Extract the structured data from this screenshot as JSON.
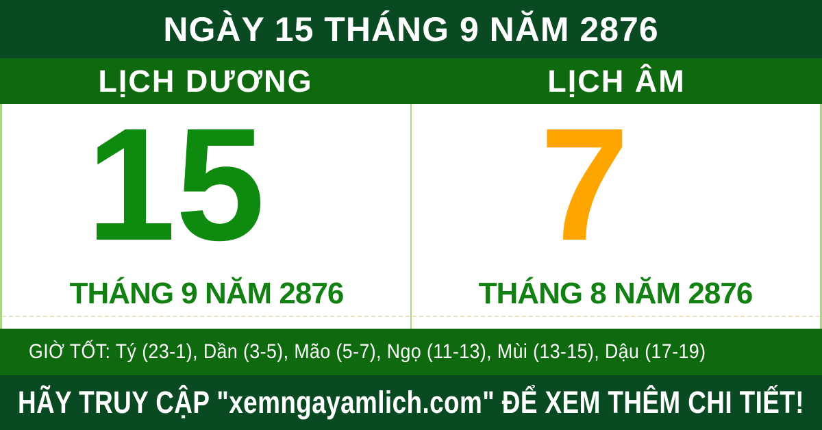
{
  "colors": {
    "dark_green": "#0a4a22",
    "band_green": "#0f6a0f",
    "solar_green": "#0e8a0e",
    "label_green": "#128012",
    "lunar_orange": "#ffa500",
    "divider_green": "#abd685",
    "white": "#ffffff"
  },
  "header": {
    "title": "NGÀY 15 THÁNG 9 NĂM 2876"
  },
  "calendar": {
    "solar": {
      "header": "LỊCH DƯƠNG",
      "day": "15",
      "month_label": "THÁNG 9 NĂM 2876"
    },
    "lunar": {
      "header": "LỊCH ÂM",
      "day": "7",
      "month_label": "THÁNG 8 NĂM 2876"
    }
  },
  "good_hours": {
    "text": "GIỜ TỐT: Tý (23-1), Dần (3-5), Mão (5-7), Ngọ (11-13), Mùi (13-15), Dậu (17-19)"
  },
  "footer": {
    "text": "HÃY TRUY CẬP \"xemngayamlich.com\" ĐỂ XEM THÊM CHI TIẾT!"
  }
}
